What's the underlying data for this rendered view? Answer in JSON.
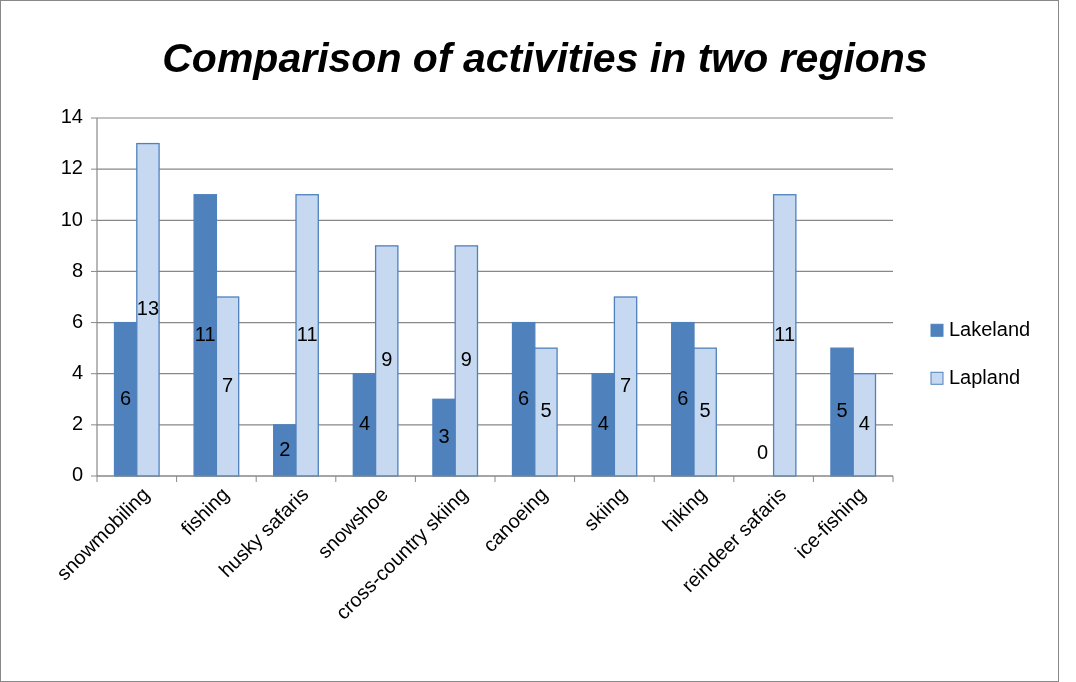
{
  "chart_data": {
    "type": "bar",
    "title": "Comparison of activities in two regions",
    "categories": [
      "snowmobiling",
      "fishing",
      "husky safaris",
      "snowshoe",
      "cross-country skiing",
      "canoeing",
      "skiing",
      "hiking",
      "reindeer safaris",
      "ice-fishing"
    ],
    "series": [
      {
        "name": "Lakeland",
        "color": "#4f81bd",
        "values": [
          6,
          11,
          2,
          4,
          3,
          6,
          4,
          6,
          0,
          5
        ]
      },
      {
        "name": "Lapland",
        "color": "#c6d9f1",
        "values": [
          13,
          7,
          11,
          9,
          9,
          5,
          7,
          5,
          11,
          4
        ]
      }
    ],
    "ylim": [
      0,
      14
    ],
    "yticks": [
      0,
      2,
      4,
      6,
      8,
      10,
      12,
      14
    ],
    "grid": "y",
    "legend": "right",
    "data_labels": true
  }
}
